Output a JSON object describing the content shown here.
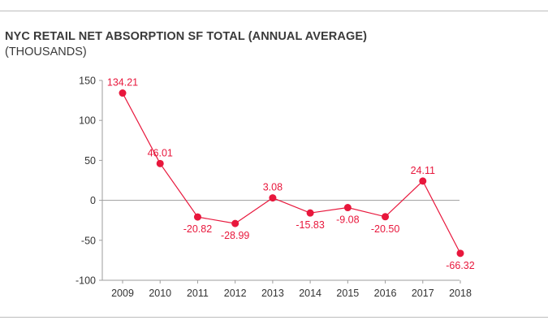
{
  "chart_data": {
    "type": "line",
    "title": "NYC RETAIL NET ABSORPTION SF TOTAL (ANNUAL AVERAGE)",
    "subtitle": "(THOUSANDS)",
    "xlabel": "",
    "ylabel": "",
    "categories": [
      "2009",
      "2010",
      "2011",
      "2012",
      "2013",
      "2014",
      "2015",
      "2016",
      "2017",
      "2018"
    ],
    "series": [
      {
        "values": [
          134.21,
          46.01,
          -20.82,
          -28.99,
          3.08,
          -15.83,
          -9.08,
          -20.5,
          24.11,
          -66.32
        ],
        "labels": [
          "134.21",
          "46.01",
          "-20.82",
          "-28.99",
          "3.08",
          "-15.83",
          "-9.08",
          "-20.50",
          "24.11",
          "-66.32"
        ],
        "label_positions": [
          "above",
          "above",
          "below",
          "below",
          "above",
          "below",
          "below",
          "below",
          "above",
          "below"
        ]
      }
    ],
    "ylim": [
      -100,
      150
    ],
    "yticks": [
      "150",
      "100",
      "50",
      "0",
      "-50",
      "-100"
    ],
    "ytick_values": [
      150,
      100,
      50,
      0,
      -50,
      -100
    ],
    "grid": false,
    "zero_line": true,
    "colors": {
      "series": "#e8173c",
      "axis": "#9e9e9e",
      "text": "#333333"
    }
  }
}
